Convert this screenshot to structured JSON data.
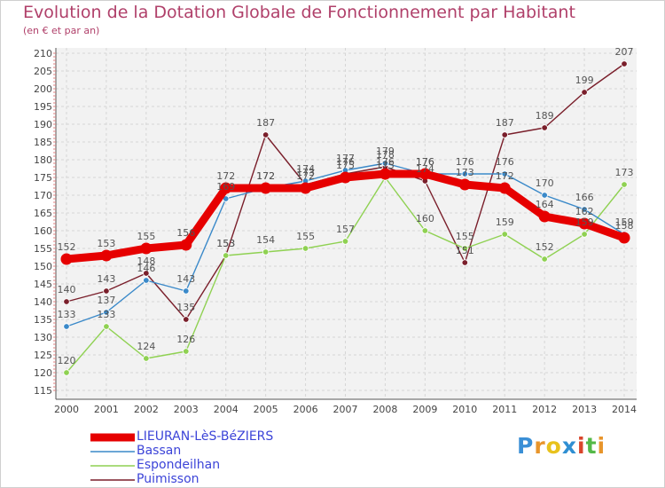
{
  "header": {
    "title": "Evolution de la Dotation Globale de Fonctionnement par Habitant",
    "subtitle": "(en € et par an)"
  },
  "logo": {
    "letters": [
      "P",
      "r",
      "o",
      "x",
      "i",
      "t",
      "i"
    ],
    "colors": [
      "#3a8fd6",
      "#e8952b",
      "#e8c21c",
      "#2f8fd2",
      "#d9452b",
      "#54b948",
      "#e8952b"
    ]
  },
  "chart_data": {
    "type": "line",
    "title": "Evolution de la Dotation Globale de Fonctionnement par Habitant",
    "subtitle": "(en € et par an)",
    "xlabel": "",
    "ylabel": "",
    "ylim": [
      115,
      210
    ],
    "yticks": [
      115,
      120,
      125,
      130,
      135,
      140,
      145,
      150,
      155,
      160,
      165,
      170,
      175,
      180,
      185,
      190,
      195,
      200,
      205,
      210
    ],
    "grid": true,
    "legend_position": "bottom-left",
    "categories": [
      "2000",
      "2001",
      "2002",
      "2003",
      "2004",
      "2005",
      "2006",
      "2007",
      "2008",
      "2009",
      "2010",
      "2011",
      "2012",
      "2013",
      "2014"
    ],
    "series": [
      {
        "name": "Puimisson",
        "color": "#7a1f2b",
        "values": [
          140,
          143,
          148,
          135,
          153,
          187,
          173,
          176,
          178,
          174,
          151,
          187,
          189,
          199,
          207
        ]
      },
      {
        "name": "Espondeilhan",
        "color": "#8fd152",
        "values": [
          120,
          133,
          124,
          126,
          153,
          154,
          155,
          157,
          175,
          160,
          155,
          159,
          152,
          159,
          173
        ]
      },
      {
        "name": "Bassan",
        "color": "#3a89c9",
        "values": [
          133,
          137,
          146,
          143,
          169,
          172,
          174,
          177,
          179,
          176,
          176,
          176,
          170,
          166,
          159
        ]
      },
      {
        "name": "LIEURAN-LèS-BéZIERS",
        "color": "#e60000",
        "values": [
          152,
          153,
          155,
          156,
          172,
          172,
          172,
          175,
          176,
          176,
          173,
          172,
          164,
          162,
          158
        ]
      }
    ],
    "legend": [
      "LIEURAN-LèS-BéZIERS",
      "Bassan",
      "Espondeilhan",
      "Puimisson"
    ]
  }
}
